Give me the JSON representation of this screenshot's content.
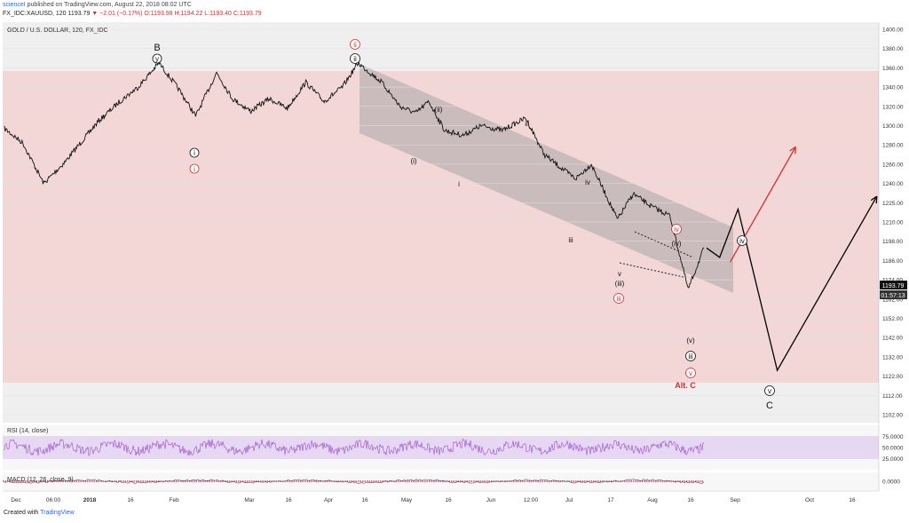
{
  "header": {
    "author": "scienceI",
    "published": "published on TradingView.com, August 22, 2018 08:02 UTC",
    "symbol_line": "FX_IDC:XAUUSD, 120",
    "last": "1193.79",
    "change": "▼ −2.01 (−0.17%)",
    "open": "O:1193.98",
    "high": "H:1194.22",
    "low": "L:1193.40",
    "close": "C:1193.79"
  },
  "chart_title": "GOLD / U.S. DOLLAR, 120, FX_IDC",
  "footer": {
    "created_with": "Created with",
    "brand": "TradingView"
  },
  "price_tags": {
    "last": "1193.79",
    "countdown": "01:57:13"
  },
  "colors": {
    "band": "#f3d6d6",
    "channel": "#a8a8a8",
    "rsi_band": "#e6d8f2",
    "rsi_line": "#9b4fc9",
    "red": "#d32f2f"
  },
  "rsi_label": "RSI (14, close)",
  "macd_label": "MACD (12, 26, close, 9)",
  "labels": {
    "B": "B",
    "y": "y",
    "i_circ": "i",
    "i_red": "i",
    "ii_red": "ii",
    "ii_circ": "ii",
    "p_i": "(i)",
    "p_ii": "(ii)",
    "small_i": "i",
    "small_ii": "ii",
    "small_iii": "iii",
    "small_iv": "iv",
    "small_v": "v",
    "p_iii": "(iii)",
    "iii_red": "iii",
    "iv_red": "iv",
    "p_iv": "(iv)",
    "p_v": "(v)",
    "iii_circ": "iii",
    "v_red": "v",
    "alt_c": "Alt. C",
    "iv_circ": "iv",
    "v_circ": "v",
    "C": "C"
  },
  "chart_data": {
    "type": "line",
    "title": "GOLD / U.S. DOLLAR, 120, FX_IDC",
    "x": [
      "Dec",
      "06:00",
      "2018",
      "16",
      "Feb",
      "Mar",
      "16",
      "Apr",
      "16",
      "May",
      "16",
      "Jun",
      "12:00",
      "Jul",
      "17",
      "Aug",
      "16",
      "Sep",
      "Oct",
      "16"
    ],
    "price_ticks": [
      "1400.00",
      "1380.00",
      "1360.00",
      "1340.00",
      "1320.00",
      "1300.00",
      "1280.00",
      "1260.00",
      "1240.00",
      "1225.00",
      "1210.00",
      "1198.00",
      "1186.00",
      "1174.00",
      "1162.00",
      "1152.00",
      "1142.00",
      "1132.00",
      "1122.00",
      "1112.00",
      "1102.00"
    ],
    "rsi_ticks": [
      "75.0000",
      "50.0000",
      "25.0000"
    ],
    "macd_ticks": [
      "0.0000"
    ],
    "series": [
      {
        "name": "XAUUSD",
        "points": [
          [
            "Nov 27",
            1297
          ],
          [
            "Dec 4",
            1282
          ],
          [
            "Dec 12",
            1240
          ],
          [
            "Dec 20",
            1262
          ],
          [
            "Jan 2",
            1305
          ],
          [
            "Jan 10",
            1325
          ],
          [
            "Jan 17",
            1340
          ],
          [
            "Jan 25",
            1365
          ],
          [
            "Feb 1",
            1340
          ],
          [
            "Feb 8",
            1310
          ],
          [
            "Feb 16",
            1355
          ],
          [
            "Feb 22",
            1328
          ],
          [
            "Mar 1",
            1315
          ],
          [
            "Mar 8",
            1328
          ],
          [
            "Mar 15",
            1318
          ],
          [
            "Mar 22",
            1345
          ],
          [
            "Mar 29",
            1325
          ],
          [
            "Apr 5",
            1340
          ],
          [
            "Apr 11",
            1365
          ],
          [
            "Apr 20",
            1345
          ],
          [
            "Apr 27",
            1320
          ],
          [
            "May 3",
            1313
          ],
          [
            "May 8",
            1325
          ],
          [
            "May 14",
            1295
          ],
          [
            "May 21",
            1290
          ],
          [
            "May 28",
            1300
          ],
          [
            "Jun 5",
            1295
          ],
          [
            "Jun 14",
            1308
          ],
          [
            "Jun 21",
            1270
          ],
          [
            "Jun 28",
            1255
          ],
          [
            "Jul 3",
            1245
          ],
          [
            "Jul 9",
            1260
          ],
          [
            "Jul 19",
            1212
          ],
          [
            "Jul 25",
            1232
          ],
          [
            "Aug 1",
            1222
          ],
          [
            "Aug 8",
            1215
          ],
          [
            "Aug 15",
            1168
          ],
          [
            "Aug 21",
            1193.79
          ]
        ]
      }
    ],
    "projections": [
      {
        "name": "primary",
        "color": "#000000",
        "points": [
          [
            "Aug 22",
            1193.79
          ],
          [
            "Aug 27",
            1188
          ],
          [
            "Sep 3",
            1220
          ],
          [
            "Sep 18",
            1125
          ],
          [
            "Oct 26",
            1230
          ]
        ]
      },
      {
        "name": "alternate",
        "color": "#d32f2f",
        "points": [
          [
            "Aug 31",
            1185
          ],
          [
            "Sep 25",
            1278
          ]
        ]
      }
    ],
    "last_price": 1193.79
  }
}
